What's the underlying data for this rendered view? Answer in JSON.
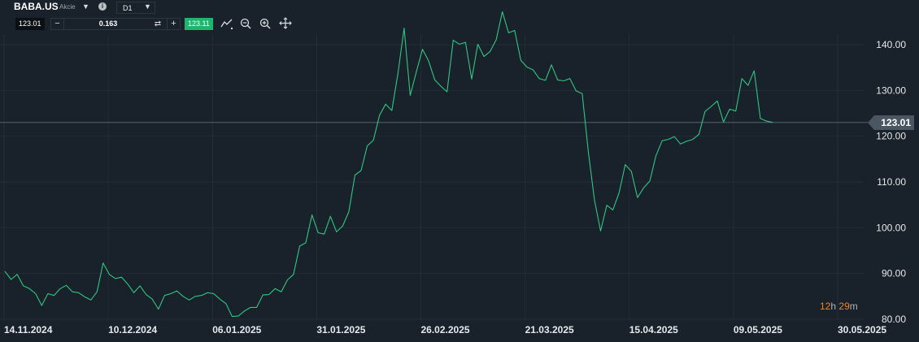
{
  "toolbar": {
    "symbol": "BABA.US",
    "symbol_type": "Akcie",
    "timeframe": "D1",
    "sell_price": "123.01",
    "volume": "0.163",
    "buy_price": "123.11",
    "icons": [
      "chevron-down-icon",
      "info-icon",
      "trend-line-icon",
      "zoom-out-icon",
      "zoom-in-icon",
      "move-icon",
      "swap-icon"
    ]
  },
  "colors": {
    "background": "#19222a",
    "grid": "#232d36",
    "line": "#2ec782",
    "price_line": "#55636f",
    "axis_text": "#e6e9ec",
    "buy": "#20b56d",
    "timer": "#e8862c"
  },
  "current_price": "123.01",
  "timer": {
    "hours": "12",
    "hours_unit": "h",
    "minutes": "29",
    "minutes_unit": "m"
  },
  "chart_data": {
    "type": "line",
    "title": "",
    "xlabel": "",
    "ylabel": "",
    "x_ticks": [
      "14.11.2024",
      "10.12.2024",
      "06.01.2025",
      "31.01.2025",
      "26.02.2025",
      "21.03.2025",
      "15.04.2025",
      "09.05.2025",
      "30.05.2025"
    ],
    "y_ticks": [
      "80.00",
      "90.00",
      "100.00",
      "110.00",
      "120.00",
      "130.00",
      "140.00"
    ],
    "ylim": [
      80,
      147
    ],
    "grid": true,
    "series": [
      {
        "values": [
          90.5,
          88.7,
          89.8,
          87.3,
          86.7,
          85.6,
          83.0,
          85.6,
          85.2,
          86.7,
          87.4,
          86.0,
          85.8,
          84.9,
          84.2,
          86.0,
          92.3,
          89.8,
          88.9,
          89.2,
          87.7,
          85.8,
          87.3,
          85.4,
          84.4,
          82.2,
          85.2,
          85.6,
          86.2,
          85.0,
          84.2,
          85.0,
          85.2,
          85.8,
          85.6,
          84.4,
          83.4,
          80.6,
          80.7,
          81.8,
          82.6,
          82.6,
          85.3,
          85.4,
          86.7,
          86.0,
          88.6,
          89.8,
          96.0,
          96.7,
          102.8,
          98.9,
          98.6,
          102.5,
          99.1,
          100.4,
          103.5,
          111.5,
          112.5,
          117.9,
          119.1,
          124.6,
          127.0,
          125.6,
          133.7,
          143.6,
          128.9,
          134.1,
          139.0,
          136.4,
          132.3,
          130.9,
          129.7,
          141.0,
          140.1,
          140.5,
          132.5,
          140.1,
          137.4,
          138.5,
          141.1,
          147.2,
          142.6,
          143.1,
          136.6,
          135.1,
          134.5,
          132.6,
          132.2,
          135.6,
          132.3,
          132.1,
          132.6,
          129.9,
          129.3,
          116.6,
          106.0,
          99.3,
          104.9,
          103.9,
          107.6,
          113.8,
          112.3,
          106.6,
          108.7,
          110.2,
          115.7,
          119.0,
          119.3,
          119.9,
          118.3,
          118.9,
          119.3,
          120.4,
          125.4,
          126.5,
          127.7,
          123.1,
          125.9,
          125.5,
          132.6,
          131.1,
          134.3,
          123.9,
          123.3,
          123.01
        ]
      }
    ]
  }
}
